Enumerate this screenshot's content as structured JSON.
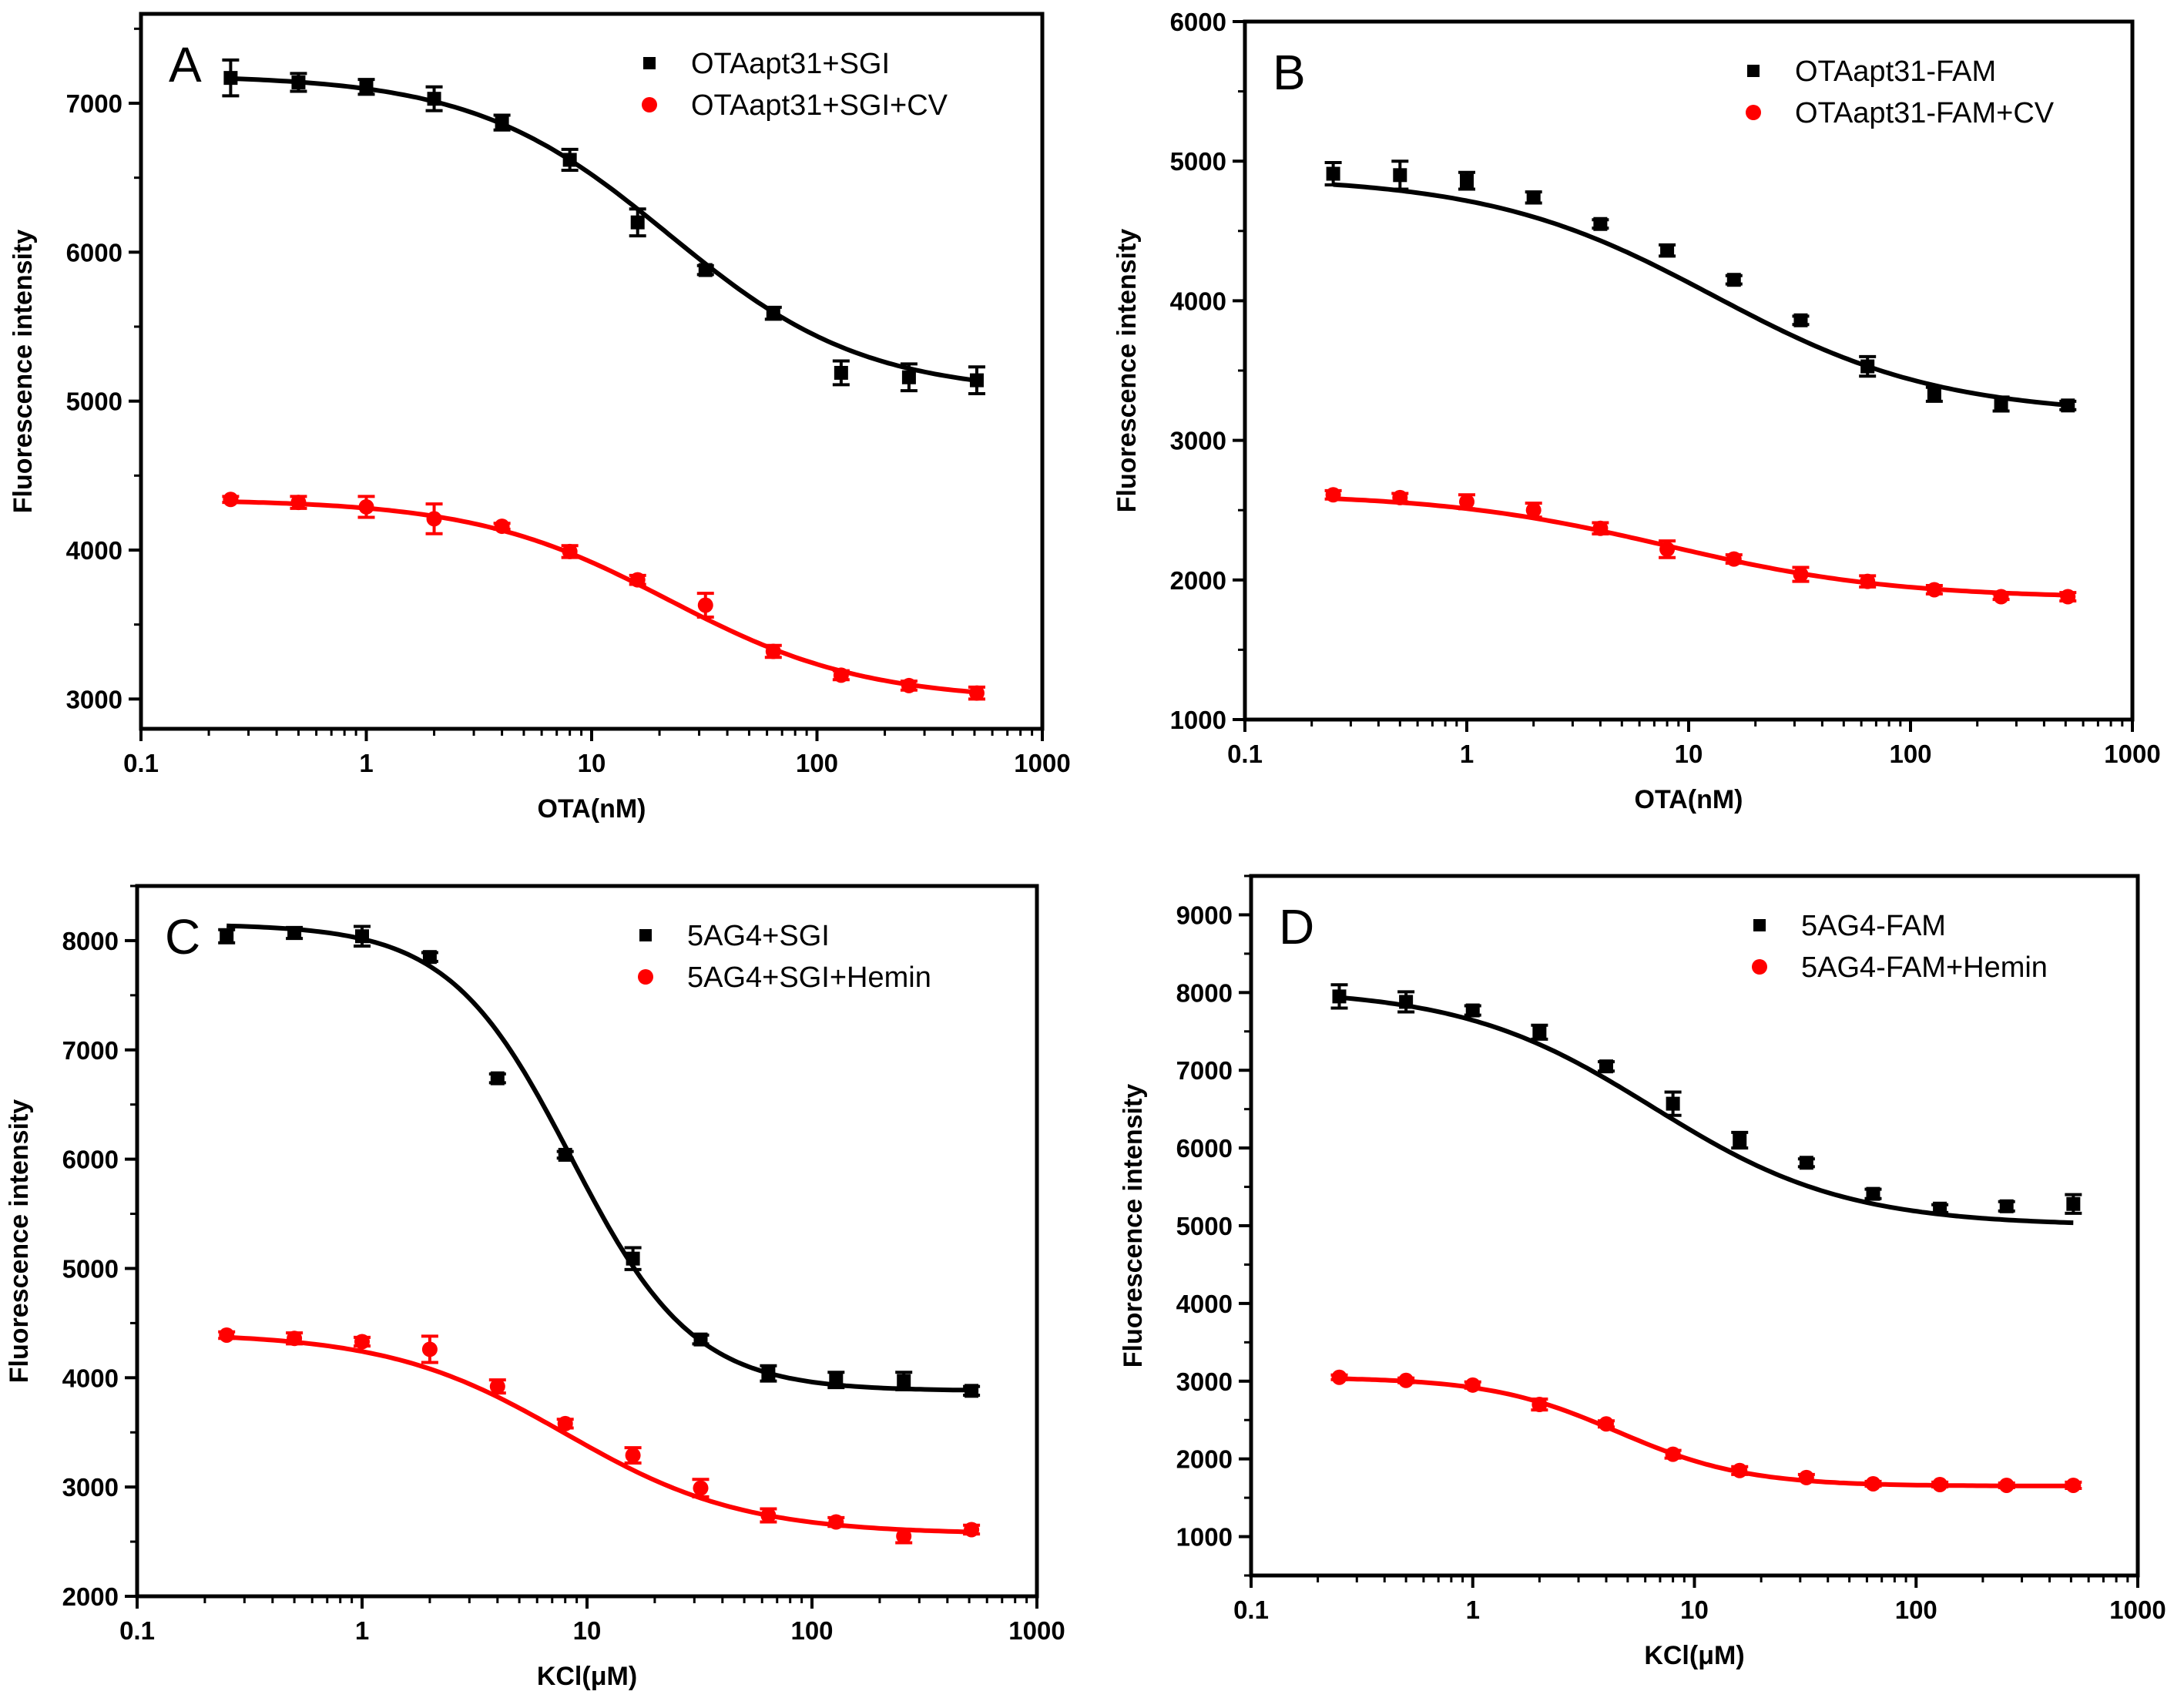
{
  "chart_data": [
    {
      "type": "scatter",
      "panel": "A",
      "xscale": "log",
      "xlim": [
        0.1,
        1000
      ],
      "xticks": [
        0.1,
        1,
        10,
        100,
        1000
      ],
      "xtick_labels": [
        "0.1",
        "1",
        "10",
        "100",
        "1000"
      ],
      "ylim": [
        2800,
        7600
      ],
      "yticks": [
        3000,
        4000,
        5000,
        6000,
        7000
      ],
      "ytick_labels": [
        "3000",
        "4000",
        "5000",
        "6000",
        "7000"
      ],
      "xlabel": "OTA(nM)",
      "ylabel": "Fluorescence intensity",
      "legend_position": "top-right",
      "x": [
        0.25,
        0.5,
        1,
        2,
        4,
        8,
        16,
        32,
        64,
        128,
        256,
        512
      ],
      "series": [
        {
          "name": "OTAapt31+SGI",
          "color": "#000000",
          "marker": "square",
          "values": [
            7170,
            7140,
            7110,
            7030,
            6870,
            6620,
            6200,
            5880,
            5590,
            5190,
            5160,
            5140
          ],
          "errors": [
            120,
            60,
            50,
            80,
            50,
            70,
            90,
            30,
            40,
            80,
            90,
            90
          ],
          "fit": {
            "top": 7190,
            "bottom": 5050,
            "ec50": 22,
            "hill": 1.0
          }
        },
        {
          "name": "OTAapt31+SGI+CV",
          "color": "#ff0000",
          "marker": "circle",
          "values": [
            4340,
            4320,
            4290,
            4210,
            4160,
            3990,
            3800,
            3630,
            3320,
            3160,
            3090,
            3040
          ],
          "errors": [
            20,
            40,
            70,
            100,
            20,
            40,
            30,
            80,
            40,
            30,
            30,
            40
          ],
          "fit": {
            "top": 4340,
            "bottom": 2990,
            "ec50": 22,
            "hill": 1.0
          }
        }
      ]
    },
    {
      "type": "scatter",
      "panel": "B",
      "xscale": "log",
      "xlim": [
        0.1,
        1000
      ],
      "xticks": [
        0.1,
        1,
        10,
        100,
        1000
      ],
      "xtick_labels": [
        "0.1",
        "1",
        "10",
        "100",
        "1000"
      ],
      "ylim": [
        1000,
        6000
      ],
      "yticks": [
        1000,
        2000,
        3000,
        4000,
        5000,
        6000
      ],
      "ytick_labels": [
        "1000",
        "2000",
        "3000",
        "4000",
        "5000",
        "6000"
      ],
      "xlabel": "OTA(nM)",
      "ylabel": "Fluorescence intensity",
      "legend_position": "top-right",
      "x": [
        0.25,
        0.5,
        1,
        2,
        4,
        8,
        16,
        32,
        64,
        128,
        256,
        512
      ],
      "series": [
        {
          "name": "OTAapt31-FAM",
          "color": "#000000",
          "marker": "square",
          "values": [
            4910,
            4900,
            4860,
            4740,
            4550,
            4360,
            4150,
            3860,
            3530,
            3330,
            3260,
            3250
          ],
          "errors": [
            80,
            100,
            60,
            40,
            30,
            40,
            30,
            30,
            70,
            50,
            50,
            30
          ],
          "fit": {
            "top": 4890,
            "bottom": 3180,
            "ec50": 13,
            "hill": 0.85
          }
        },
        {
          "name": "OTAapt31-FAM+CV",
          "color": "#ff0000",
          "marker": "circle",
          "values": [
            2610,
            2590,
            2560,
            2500,
            2370,
            2220,
            2150,
            2040,
            1990,
            1930,
            1880,
            1880
          ],
          "errors": [
            30,
            30,
            50,
            50,
            40,
            60,
            30,
            50,
            40,
            30,
            20,
            30
          ],
          "fit": {
            "top": 2620,
            "bottom": 1870,
            "ec50": 8,
            "hill": 0.85
          }
        }
      ]
    },
    {
      "type": "scatter",
      "panel": "C",
      "xscale": "log",
      "xlim": [
        0.1,
        1000
      ],
      "xticks": [
        0.1,
        1,
        10,
        100,
        1000
      ],
      "xtick_labels": [
        "0.1",
        "1",
        "10",
        "100",
        "1000"
      ],
      "ylim": [
        2000,
        8500
      ],
      "yticks": [
        2000,
        3000,
        4000,
        5000,
        6000,
        7000,
        8000
      ],
      "ytick_labels": [
        "2000",
        "3000",
        "4000",
        "5000",
        "6000",
        "7000",
        "8000"
      ],
      "xlabel": "KCl(μM)",
      "ylabel": "Fluorescence intensity",
      "legend_position": "top-right",
      "x": [
        0.25,
        0.5,
        1,
        2,
        4,
        8,
        16,
        32,
        64,
        128,
        256,
        512
      ],
      "series": [
        {
          "name": "5AG4+SGI",
          "color": "#000000",
          "marker": "square",
          "values": [
            8040,
            8070,
            8040,
            7850,
            6740,
            6040,
            5090,
            4350,
            4040,
            3980,
            3970,
            3880
          ],
          "errors": [
            60,
            50,
            90,
            40,
            40,
            30,
            100,
            40,
            70,
            70,
            80,
            40
          ],
          "fit": {
            "top": 8150,
            "bottom": 3880,
            "ec50": 8.5,
            "hill": 1.6
          }
        },
        {
          "name": "5AG4+SGI+Hemin",
          "color": "#ff0000",
          "marker": "circle",
          "values": [
            4390,
            4360,
            4330,
            4260,
            3920,
            3580,
            3290,
            2990,
            2740,
            2680,
            2550,
            2610
          ],
          "errors": [
            30,
            50,
            40,
            120,
            60,
            40,
            70,
            80,
            60,
            40,
            60,
            40
          ],
          "fit": {
            "top": 4410,
            "bottom": 2570,
            "ec50": 8,
            "hill": 1.1
          }
        }
      ]
    },
    {
      "type": "scatter",
      "panel": "D",
      "xscale": "log",
      "xlim": [
        0.1,
        1000
      ],
      "xticks": [
        0.1,
        1,
        10,
        100,
        1000
      ],
      "xtick_labels": [
        "0.1",
        "1",
        "10",
        "100",
        "1000"
      ],
      "ylim": [
        500,
        9500
      ],
      "yticks": [
        1000,
        2000,
        3000,
        4000,
        5000,
        6000,
        7000,
        8000,
        9000
      ],
      "ytick_labels": [
        "1000",
        "2000",
        "3000",
        "4000",
        "5000",
        "6000",
        "7000",
        "8000",
        "9000"
      ],
      "xlabel": "KCl(μM)",
      "ylabel": "Fluorescence intensity",
      "legend_position": "top-right",
      "x": [
        0.25,
        0.5,
        1,
        2,
        4,
        8,
        16,
        32,
        64,
        128,
        256,
        512
      ],
      "series": [
        {
          "name": "5AG4-FAM",
          "color": "#000000",
          "marker": "square",
          "values": [
            7950,
            7880,
            7770,
            7490,
            7050,
            6570,
            6100,
            5810,
            5410,
            5220,
            5250,
            5280
          ],
          "errors": [
            150,
            130,
            60,
            90,
            60,
            150,
            100,
            50,
            60,
            50,
            60,
            120
          ],
          "fit": {
            "top": 8050,
            "bottom": 5000,
            "ec50": 6.5,
            "hill": 1.0
          }
        },
        {
          "name": "5AG4-FAM+Hemin",
          "color": "#ff0000",
          "marker": "circle",
          "values": [
            3050,
            3010,
            2950,
            2700,
            2450,
            2060,
            1850,
            1760,
            1680,
            1670,
            1660,
            1660
          ],
          "errors": [
            30,
            30,
            40,
            70,
            40,
            50,
            50,
            40,
            30,
            30,
            30,
            40
          ],
          "fit": {
            "top": 3050,
            "bottom": 1650,
            "ec50": 4.5,
            "hill": 1.5
          }
        }
      ]
    }
  ]
}
